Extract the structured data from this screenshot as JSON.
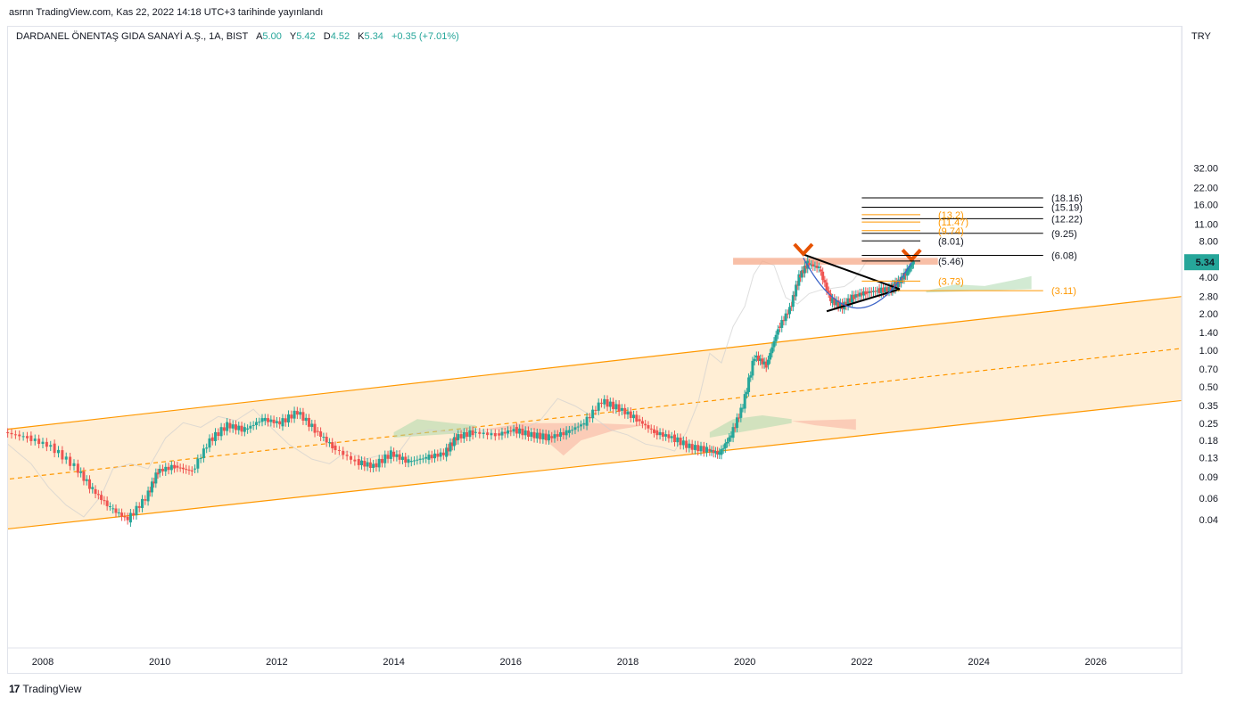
{
  "header": {
    "published": "asrnn TradingView.com, Kas 22, 2022 14:18 UTC+3 tarihinde yayınlandı"
  },
  "legend": {
    "symbol": "DARDANEL ÖNENTAŞ GIDA SANAYİ A.Ş., 1A, BIST",
    "open_label": "A",
    "open": "5.00",
    "high_label": "Y",
    "high": "5.42",
    "low_label": "D",
    "low": "4.52",
    "close_label": "K",
    "close": "5.34",
    "change": "+0.35 (+7.01%)"
  },
  "axis": {
    "currency": "TRY",
    "last_price": "5.34"
  },
  "footer": {
    "brand": "TradingView",
    "brand_mark": "17"
  },
  "colors": {
    "up": "#26a69a",
    "down": "#ef5350",
    "channel": "#ff9800",
    "channel_fill": "#ffe0b2",
    "cloud_green": "#a5d6a7",
    "cloud_red": "#f8a99a",
    "zone": "#f5a98a",
    "arrow": "#e65100"
  },
  "chart_data": {
    "type": "candlestick",
    "scale": "log",
    "x_ticks": [
      "2008",
      "2010",
      "2012",
      "2014",
      "2016",
      "2018",
      "2020",
      "2022",
      "2024",
      "2026"
    ],
    "x_tick_years": [
      2008,
      2010,
      2012,
      2014,
      2016,
      2018,
      2020,
      2022,
      2024,
      2026
    ],
    "y_ticks": [
      "32.00",
      "22.00",
      "16.00",
      "11.00",
      "8.00",
      "5.34",
      "4.00",
      "2.80",
      "2.00",
      "1.40",
      "1.00",
      "0.70",
      "0.50",
      "0.35",
      "0.25",
      "0.18",
      "0.13",
      "0.09",
      "0.06",
      "0.04"
    ],
    "y_tick_values": [
      32,
      22,
      16,
      11,
      8,
      4,
      2.8,
      2,
      1.4,
      1,
      0.7,
      0.5,
      0.35,
      0.25,
      0.18,
      0.13,
      0.09,
      0.06,
      0.04
    ],
    "price_path": [
      [
        2007.4,
        0.21
      ],
      [
        2007.8,
        0.19
      ],
      [
        2008.2,
        0.16
      ],
      [
        2008.6,
        0.11
      ],
      [
        2008.9,
        0.07
      ],
      [
        2009.2,
        0.05
      ],
      [
        2009.5,
        0.04
      ],
      [
        2009.8,
        0.06
      ],
      [
        2010.0,
        0.1
      ],
      [
        2010.3,
        0.11
      ],
      [
        2010.6,
        0.1
      ],
      [
        2010.9,
        0.18
      ],
      [
        2011.2,
        0.24
      ],
      [
        2011.5,
        0.22
      ],
      [
        2011.8,
        0.27
      ],
      [
        2012.1,
        0.25
      ],
      [
        2012.4,
        0.31
      ],
      [
        2012.7,
        0.22
      ],
      [
        2013.0,
        0.16
      ],
      [
        2013.4,
        0.12
      ],
      [
        2013.7,
        0.11
      ],
      [
        2014.0,
        0.14
      ],
      [
        2014.3,
        0.12
      ],
      [
        2014.6,
        0.13
      ],
      [
        2014.9,
        0.14
      ],
      [
        2015.1,
        0.19
      ],
      [
        2015.4,
        0.21
      ],
      [
        2015.8,
        0.2
      ],
      [
        2016.1,
        0.22
      ],
      [
        2016.4,
        0.2
      ],
      [
        2016.7,
        0.19
      ],
      [
        2017.0,
        0.21
      ],
      [
        2017.3,
        0.25
      ],
      [
        2017.6,
        0.38
      ],
      [
        2017.9,
        0.33
      ],
      [
        2018.2,
        0.27
      ],
      [
        2018.5,
        0.21
      ],
      [
        2018.8,
        0.19
      ],
      [
        2019.1,
        0.16
      ],
      [
        2019.4,
        0.15
      ],
      [
        2019.6,
        0.14
      ],
      [
        2019.8,
        0.2
      ],
      [
        2020.0,
        0.35
      ],
      [
        2020.2,
        0.9
      ],
      [
        2020.4,
        0.75
      ],
      [
        2020.6,
        1.5
      ],
      [
        2020.8,
        2.2
      ],
      [
        2020.95,
        4.0
      ],
      [
        2021.1,
        5.2
      ],
      [
        2021.3,
        4.8
      ],
      [
        2021.5,
        2.6
      ],
      [
        2021.7,
        2.3
      ],
      [
        2021.9,
        2.8
      ],
      [
        2022.1,
        3.0
      ],
      [
        2022.3,
        3.1
      ],
      [
        2022.5,
        3.2
      ],
      [
        2022.65,
        3.6
      ],
      [
        2022.8,
        4.5
      ],
      [
        2022.9,
        5.34
      ]
    ],
    "channel_upper": [
      [
        2007.3,
        0.22
      ],
      [
        2027.8,
        2.9
      ]
    ],
    "channel_lower": [
      [
        2007.3,
        0.033
      ],
      [
        2027.8,
        0.4
      ]
    ],
    "channel_mid": [
      [
        2007.3,
        0.085
      ],
      [
        2027.8,
        1.08
      ]
    ],
    "fib_levels_right": [
      "(18.16)",
      "(15.19)",
      "(12.22)",
      "(9.25)",
      "(8.01)",
      "(6.08)",
      "(5.46)",
      "(3.11)"
    ],
    "fib_levels_right_values": [
      18.16,
      15.19,
      12.22,
      9.25,
      8.01,
      6.08,
      5.46,
      3.11
    ],
    "fib_levels_orange": [
      "(13.2)",
      "(11.47)",
      "(9.74)",
      "(3.73)"
    ],
    "fib_levels_orange_values": [
      13.2,
      11.47,
      9.74,
      3.73
    ],
    "triangle": [
      [
        2021.0,
        6.2
      ],
      [
        2022.65,
        3.2
      ],
      [
        2021.4,
        2.1
      ]
    ],
    "resistance_zone": [
      2019.8,
      2023.3,
      5.1,
      5.8
    ],
    "grid": false,
    "legend_position": "top-left"
  }
}
